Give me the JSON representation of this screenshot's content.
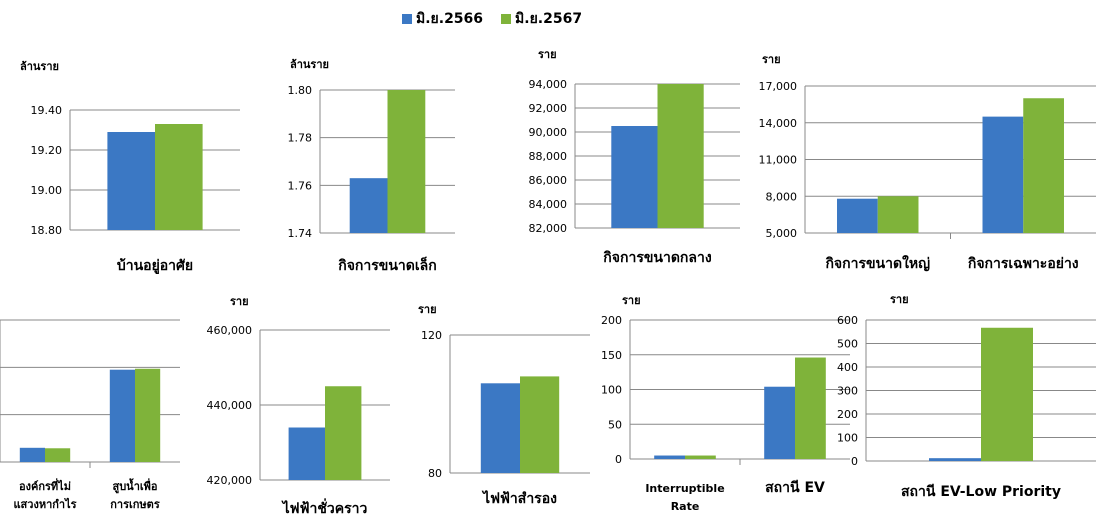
{
  "legend": {
    "series_1": "มิ.ย.2566",
    "series_2": "มิ.ย.2567"
  },
  "colors": {
    "series_1": "#3b78c4",
    "series_2": "#7fb33a",
    "axis": "#888888",
    "grid": "#888888"
  },
  "chart_data": [
    {
      "type": "bar",
      "xlabel": "",
      "ylabel": "ล้านราย",
      "ylim": [
        18.8,
        19.4
      ],
      "ticks": [
        "18.80",
        "19.00",
        "19.20",
        "19.40"
      ],
      "categories": [
        "บ้านอยู่อาศัย"
      ],
      "series": [
        {
          "name": "มิ.ย.2566",
          "values": [
            19.29
          ]
        },
        {
          "name": "มิ.ย.2567",
          "values": [
            19.33
          ]
        }
      ]
    },
    {
      "type": "bar",
      "xlabel": "",
      "ylabel": "ล้านราย",
      "ylim": [
        1.74,
        1.8
      ],
      "ticks": [
        "1.74",
        "1.76",
        "1.78",
        "1.80"
      ],
      "categories": [
        "กิจการขนาดเล็ก"
      ],
      "series": [
        {
          "name": "มิ.ย.2566",
          "values": [
            1.763
          ]
        },
        {
          "name": "มิ.ย.2567",
          "values": [
            1.8
          ]
        }
      ]
    },
    {
      "type": "bar",
      "xlabel": "",
      "ylabel": "ราย",
      "ylim": [
        82000,
        94000
      ],
      "ticks": [
        "82,000",
        "84,000",
        "86,000",
        "88,000",
        "90,000",
        "92,000",
        "94,000"
      ],
      "categories": [
        "กิจการขนาดกลาง"
      ],
      "series": [
        {
          "name": "มิ.ย.2566",
          "values": [
            90500
          ]
        },
        {
          "name": "มิ.ย.2567",
          "values": [
            94000
          ]
        }
      ]
    },
    {
      "type": "bar",
      "xlabel": "",
      "ylabel": "ราย",
      "ylim": [
        5000,
        17000
      ],
      "ticks": [
        "5,000",
        "8,000",
        "11,000",
        "14,000",
        "17,000"
      ],
      "categories": [
        "กิจการขนาดใหญ่",
        "กิจการเฉพาะอย่าง"
      ],
      "series": [
        {
          "name": "มิ.ย.2566",
          "values": [
            7800,
            14500
          ]
        },
        {
          "name": "มิ.ย.2567",
          "values": [
            8000,
            16000
          ]
        }
      ]
    },
    {
      "type": "bar",
      "xlabel": "",
      "ylabel": "",
      "ylim": [
        0,
        300
      ],
      "ticks": [],
      "categories": [
        "องค์กรที่ไม่\nแสวงหากำไร",
        "สูบน้ำเพื่อ\nการเกษตร"
      ],
      "series": [
        {
          "name": "มิ.ย.2566",
          "values": [
            30,
            195
          ]
        },
        {
          "name": "มิ.ย.2567",
          "values": [
            29,
            197
          ]
        }
      ]
    },
    {
      "type": "bar",
      "xlabel": "",
      "ylabel": "ราย",
      "ylim": [
        420000,
        460000
      ],
      "ticks": [
        "420,000",
        "440,000",
        "460,000"
      ],
      "categories": [
        "ไฟฟ้าชั่วคราว"
      ],
      "series": [
        {
          "name": "มิ.ย.2566",
          "values": [
            434000
          ]
        },
        {
          "name": "มิ.ย.2567",
          "values": [
            445000
          ]
        }
      ]
    },
    {
      "type": "bar",
      "xlabel": "",
      "ylabel": "ราย",
      "ylim": [
        80,
        120
      ],
      "ticks": [
        "80",
        "120"
      ],
      "categories": [
        "ไฟฟ้าสำรอง"
      ],
      "series": [
        {
          "name": "มิ.ย.2566",
          "values": [
            106
          ]
        },
        {
          "name": "มิ.ย.2567",
          "values": [
            108
          ]
        }
      ]
    },
    {
      "type": "bar",
      "xlabel": "",
      "ylabel": "ราย",
      "ylim": [
        0,
        200
      ],
      "ticks": [
        "0",
        "50",
        "100",
        "150",
        "200"
      ],
      "categories": [
        "Interruptible\nRate",
        "สถานี EV"
      ],
      "series": [
        {
          "name": "มิ.ย.2566",
          "values": [
            5,
            104
          ]
        },
        {
          "name": "มิ.ย.2567",
          "values": [
            5,
            146
          ]
        }
      ]
    },
    {
      "type": "bar",
      "xlabel": "",
      "ylabel": "ราย",
      "ylim": [
        0,
        600
      ],
      "ticks": [
        "0",
        "100",
        "200",
        "300",
        "400",
        "500",
        "600"
      ],
      "categories": [
        "สถานี EV-Low Priority"
      ],
      "series": [
        {
          "name": "มิ.ย.2566",
          "values": [
            12
          ]
        },
        {
          "name": "มิ.ย.2567",
          "values": [
            567
          ]
        }
      ]
    }
  ]
}
